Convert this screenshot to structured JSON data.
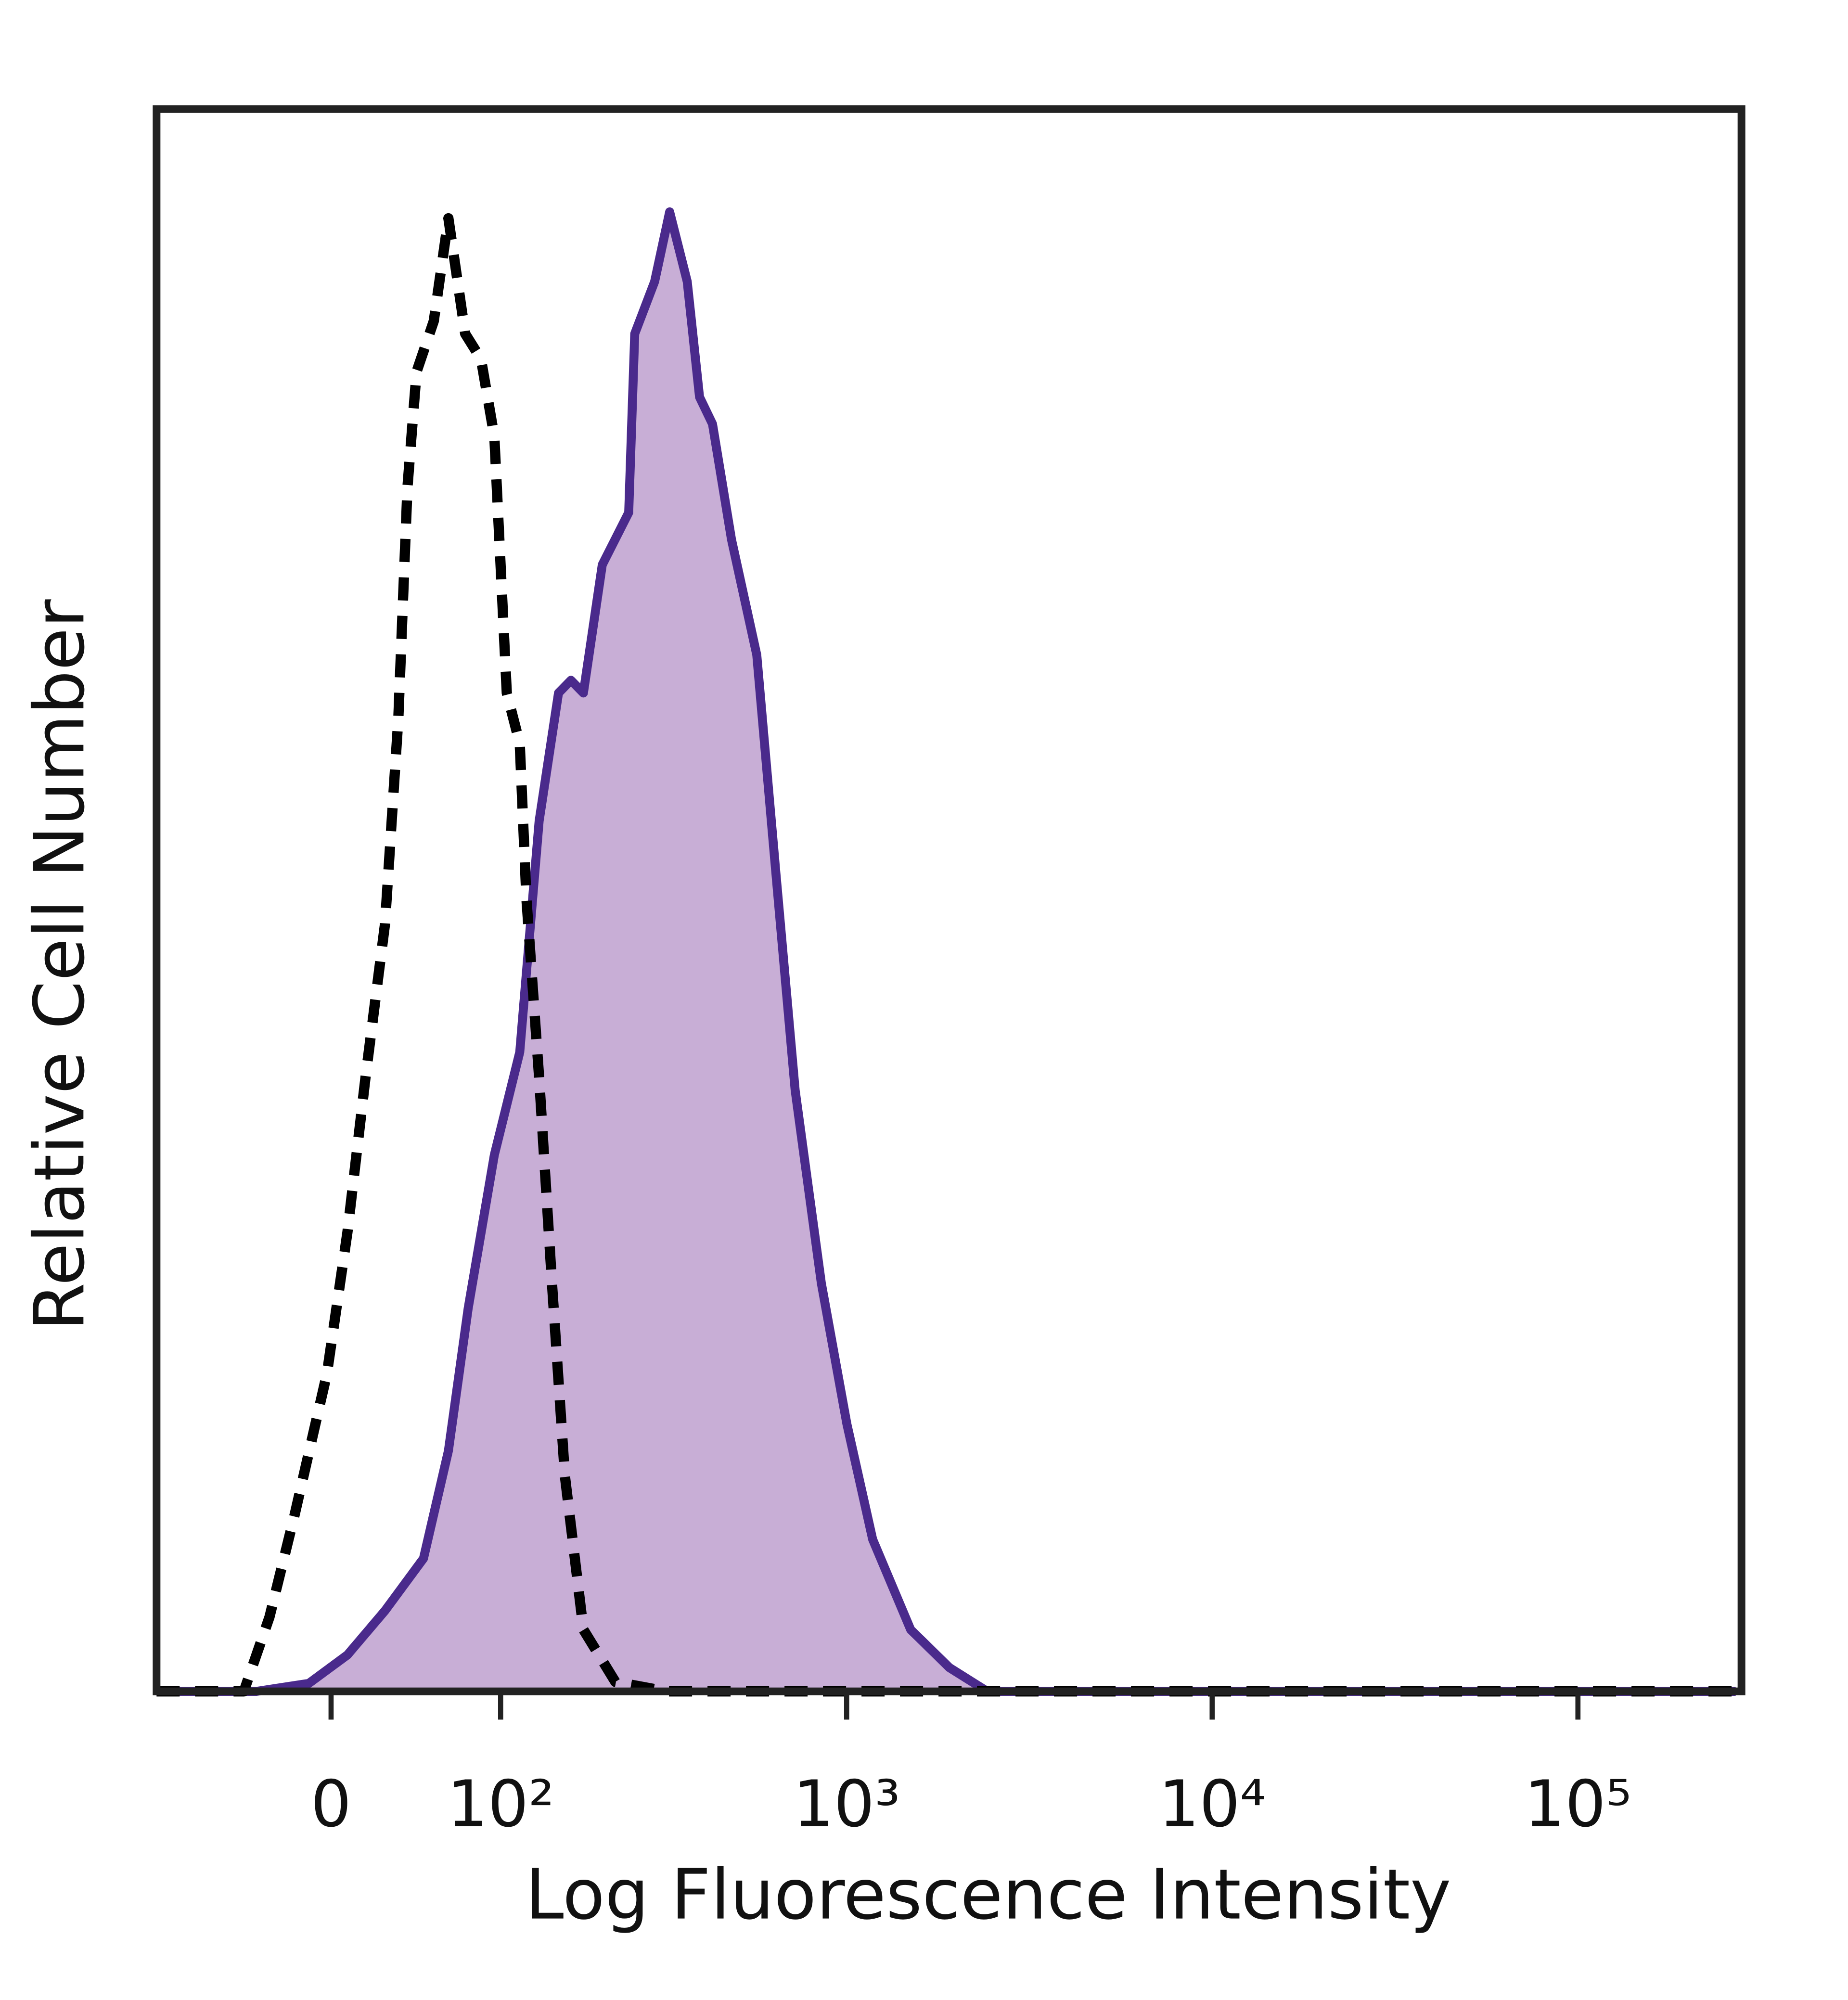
{
  "chart_data": {
    "type": "area",
    "xlabel": "Log Fluorescence Intensity",
    "ylabel": "Relative Cell Number",
    "xscale": "biexponential",
    "xlim": [
      -104,
      280000
    ],
    "ylim": [
      0,
      100
    ],
    "xticks": [
      0,
      {
        "value": 100,
        "label": "10²"
      },
      {
        "value": 1000,
        "label": "10³"
      },
      {
        "value": 10000,
        "label": "10⁴"
      },
      {
        "value": 100000,
        "label": "10⁵"
      }
    ],
    "series": [
      {
        "color": "#4a2a8c",
        "fill": "#c8aed6",
        "linestyle": "solid",
        "x": [
          -104,
          -38,
          -11,
          8,
          27,
          48,
          63,
          76,
          95,
          116,
          134,
          154,
          168,
          183,
          208,
          248,
          258,
          294,
          324,
          363,
          393,
          427,
          482,
          566,
          639,
          722,
          852,
          1001,
          1178,
          1498,
          1911,
          2426,
          270000
        ],
        "values": [
          0,
          0,
          0.5,
          2.3,
          5.1,
          8.4,
          15.2,
          24.2,
          33.9,
          40.4,
          55.0,
          63.1,
          63.9,
          63.1,
          71.2,
          74.5,
          85.8,
          89.1,
          93.5,
          89.1,
          81.8,
          80.1,
          72.8,
          65.5,
          51.7,
          38.0,
          25.8,
          16.9,
          9.6,
          3.9,
          1.5,
          0,
          0
        ]
      },
      {
        "color": "#000000",
        "fill": null,
        "linestyle": "dashed",
        "x": [
          -104,
          -45,
          -31,
          -18,
          -2,
          8,
          17,
          27,
          34,
          39,
          44,
          54,
          63,
          74,
          85,
          95,
          105,
          116,
          122,
          134,
          147,
          161,
          183,
          227,
          319,
          270000
        ],
        "values": [
          0,
          0,
          4.7,
          11.2,
          20.1,
          29.0,
          38.8,
          48.5,
          61.5,
          76.1,
          83.4,
          86.6,
          93.1,
          85.8,
          84.2,
          79.3,
          63.1,
          59.9,
          50.1,
          38.8,
          25.8,
          13.6,
          3.9,
          0.6,
          0,
          0
        ]
      }
    ]
  }
}
